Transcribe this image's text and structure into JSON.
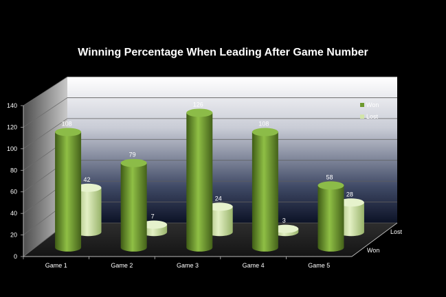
{
  "chart_data": {
    "type": "bar",
    "title": "Winning Percentage When Leading After Game Number",
    "xlabel": "",
    "ylabel": "",
    "categories": [
      "Game 1",
      "Game 2",
      "Game 3",
      "Game 4",
      "Game 5"
    ],
    "series": [
      {
        "name": "Won",
        "values": [
          108,
          79,
          126,
          108,
          58
        ],
        "color": "#6e9a2e"
      },
      {
        "name": "Lost",
        "values": [
          42,
          7,
          24,
          3,
          28
        ],
        "color": "#c6dc97"
      }
    ],
    "ylim": [
      0,
      140
    ],
    "yticks": [
      0,
      20,
      40,
      60,
      80,
      100,
      120,
      140
    ],
    "depth_labels": [
      "Won",
      "Lost"
    ],
    "legend_position": "right",
    "grid": true,
    "three_d": true
  }
}
